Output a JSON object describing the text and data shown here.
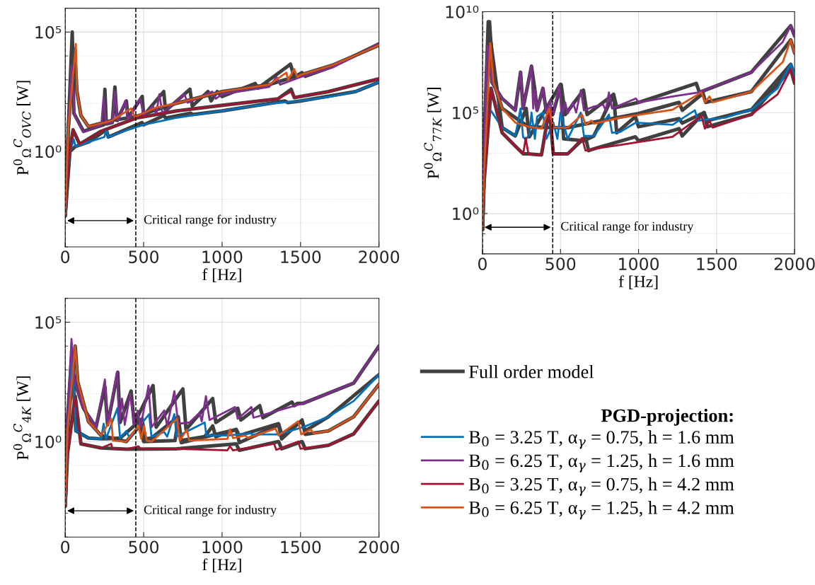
{
  "chart_data": [
    {
      "type": "line",
      "xlabel": "f [Hz]",
      "ylabel": "P$^{0}$$_{Ω}$$^{C}$$_{OVC}$ [W]",
      "log": "y",
      "grid": true,
      "line_style": "solid",
      "xlim": [
        0,
        2000
      ],
      "xticks": [
        0,
        500,
        1000,
        1500,
        2000
      ],
      "ylim": [
        0.0001,
        1000000
      ],
      "yticks": [
        {
          "value": 0.0001,
          "label": null
        },
        {
          "value": 0.001,
          "label": null
        },
        {
          "value": 0.01,
          "label": null
        },
        {
          "value": 0.1,
          "label": null
        },
        {
          "value": 1,
          "label": "10⁰"
        },
        {
          "value": 10,
          "label": null
        },
        {
          "value": 100,
          "label": null
        },
        {
          "value": 1000,
          "label": null
        },
        {
          "value": 10000,
          "label": null
        },
        {
          "value": 100000,
          "label": "10⁵"
        },
        {
          "value": 1000000,
          "label": null
        }
      ],
      "ref_lines": [
        {
          "axis": "x",
          "value": 0,
          "color": "#000000",
          "line_style": "dashed"
        },
        {
          "axis": "x",
          "value": 450,
          "color": "#000000",
          "line_style": "dashed"
        }
      ],
      "annotations": [
        "Critical range for industry"
      ],
      "series": [
        {
          "color": "#404040",
          "x": [
            0,
            20,
            45,
            55,
            116,
            245,
            253,
            262,
            300,
            317,
            330,
            390,
            400,
            491,
            500,
            628,
            640,
            795,
            810,
            910,
            930,
            969,
            1000,
            1211,
            1230,
            1436,
            1460,
            1509,
            1530,
            1700,
            2000
          ],
          "values": [
            0.002,
            10,
            100000.0,
            40,
            7,
            13,
            400,
            14,
            16,
            500,
            20,
            130,
            25,
            200,
            32,
            320,
            50,
            400,
            80,
            320,
            130,
            320,
            200,
            700,
            450,
            4500,
            1300,
            2000,
            1400,
            3500,
            32000
          ]
        },
        {
          "color": "#404040",
          "x": [
            0,
            20,
            60,
            75,
            100,
            148,
            300,
            444,
            700,
            1000,
            1300,
            1500,
            1700,
            2000
          ],
          "values": [
            0.002,
            10,
            20000,
            320,
            32,
            11,
            20,
            28,
            100,
            320,
            630,
            1600,
            4000,
            28000
          ]
        },
        {
          "color": "#404040",
          "x": [
            0,
            30,
            65,
            150,
            262,
            275,
            400,
            490,
            500,
            630,
            640,
            800,
            810,
            1000,
            1400,
            1420,
            1500,
            1850,
            2000
          ],
          "values": [
            0.002,
            1,
            1.6,
            2.5,
            8,
            4,
            9,
            16,
            13,
            32,
            25,
            40,
            35,
            50,
            130,
            110,
            130,
            320,
            800
          ]
        },
        {
          "color": "#404040",
          "x": [
            0,
            20,
            50,
            92,
            229,
            454,
            712,
            1034,
            1356,
            1440,
            1460,
            1678,
            2000
          ],
          "values": [
            0.002,
            0.4,
            8,
            2,
            7,
            25,
            50,
            90,
            160,
            400,
            180,
            320,
            1100
          ]
        },
        {
          "color": "#0072bd",
          "x": [
            0,
            10,
            30,
            55,
            65,
            150,
            250,
            262,
            275,
            400,
            500,
            700,
            1000,
            1300,
            1500,
            1700,
            1850,
            2000
          ],
          "values": [
            0.002,
            0.1,
            1,
            3.2,
            1.6,
            2.5,
            4,
            8,
            4,
            8,
            13,
            25,
            50,
            100,
            130,
            200,
            320,
            800
          ]
        },
        {
          "color": "#7e2f8e",
          "x": [
            0,
            20,
            40,
            60,
            116,
            230,
            245,
            260,
            300,
            317,
            335,
            382,
            400,
            478,
            500,
            559,
            580,
            600,
            620,
            693,
            760,
            780,
            937,
            960,
            1000,
            1300,
            1348,
            1370,
            1500,
            1700,
            2000
          ],
          "values": [
            0.002,
            10,
            4000,
            32,
            6.3,
            13,
            200,
            14,
            16,
            320,
            18,
            130,
            20,
            160,
            32,
            80,
            35,
            250,
            40,
            100,
            250,
            110,
            320,
            160,
            250,
            500,
            1300,
            630,
            1300,
            3200,
            32000
          ]
        },
        {
          "color": "#a2142f",
          "x": [
            0,
            20,
            50,
            92,
            229,
            454,
            712,
            1034,
            1356,
            1440,
            1460,
            1678,
            2000
          ],
          "values": [
            0.002,
            0.4,
            8,
            2,
            7,
            25,
            50,
            90,
            160,
            320,
            180,
            320,
            1100
          ]
        },
        {
          "color": "#d95319",
          "x": [
            0,
            20,
            68,
            75,
            100,
            148,
            250,
            300,
            420,
            444,
            583,
            700,
            1000,
            1300,
            1410,
            1420,
            1460,
            1480,
            1500,
            1700,
            2000
          ],
          "values": [
            0.002,
            10,
            32000,
            320,
            32,
            11,
            16,
            20,
            63,
            28,
            70,
            100,
            320,
            630,
            2000,
            1000,
            2800,
            1300,
            1600,
            4000,
            28000
          ]
        }
      ]
    },
    {
      "type": "line",
      "xlabel": "f [Hz]",
      "ylabel": "P$^{0}$$_{Ω}$$^{C}$$_{77K}$ [W]",
      "log": "y",
      "grid": true,
      "line_style": "solid",
      "xlim": [
        0,
        2000
      ],
      "xticks": [
        0,
        500,
        1000,
        1500,
        2000
      ],
      "ylim": [
        0.01,
        10000000000
      ],
      "yticks": [
        {
          "value": 0.01,
          "label": null
        },
        {
          "value": 0.1,
          "label": null
        },
        {
          "value": 1,
          "label": "10⁰"
        },
        {
          "value": 10,
          "label": null
        },
        {
          "value": 100,
          "label": null
        },
        {
          "value": 1000,
          "label": null
        },
        {
          "value": 10000,
          "label": null
        },
        {
          "value": 100000,
          "label": "10⁵"
        },
        {
          "value": 1000000,
          "label": null
        },
        {
          "value": 10000000,
          "label": null
        },
        {
          "value": 100000000,
          "label": null
        },
        {
          "value": 1000000000,
          "label": null
        },
        {
          "value": 10000000000,
          "label": "10¹⁰"
        }
      ],
      "ref_lines": [
        {
          "axis": "x",
          "value": 0,
          "color": "#000000",
          "line_style": "dashed"
        },
        {
          "axis": "x",
          "value": 450,
          "color": "#000000",
          "line_style": "dashed"
        }
      ],
      "annotations": [
        "Critical range for industry"
      ],
      "series": [
        {
          "color": "#404040",
          "x": [
            0,
            10,
            37,
            60,
            126,
            210,
            244,
            260,
            314,
            336,
            350,
            387,
            410,
            450,
            504,
            530,
            647,
            670,
            840,
            860,
            1000,
            1370,
            1390,
            1723,
            1975,
            2000
          ],
          "values": [
            0.16,
            3200,
            3200000000.0,
            3200000.0,
            500000.0,
            130000.0,
            10000000.0,
            160000.0,
            20000000.0,
            1300000.0,
            130000.0,
            1600000.0,
            100000.0,
            80000.0,
            2500000.0,
            80000.0,
            1300000.0,
            80000.0,
            800000.0,
            180000.0,
            320000.0,
            2800000.0,
            1000000.0,
            10000000.0,
            2000000000.0,
            630000000.0
          ]
        },
        {
          "color": "#404040",
          "x": [
            0,
            10,
            45,
            70,
            126,
            294,
            454,
            546,
            700,
            1000,
            1260,
            1280,
            1413,
            1430,
            1723,
            1975,
            2000
          ],
          "values": [
            0.16,
            100,
            3200000000.0,
            3200000.0,
            160000.0,
            20000.0,
            18000.0,
            18000.0,
            32000.0,
            90000.0,
            320000.0,
            130000.0,
            900000.0,
            320000.0,
            1100000.0,
            400000000.0,
            90000000.0
          ]
        },
        {
          "color": "#404040",
          "x": [
            0,
            10,
            45,
            126,
            210,
            280,
            300,
            500,
            520,
            650,
            714,
            840,
            860,
            980,
            1000,
            1260,
            1280,
            1420,
            1440,
            1723,
            1975,
            2000
          ],
          "values": [
            0.16,
            100,
            1000000000.0,
            18000.0,
            7000.0,
            160000.0,
            6300.0,
            2500000.0,
            5000.0,
            4000.0,
            7000.0,
            800000.0,
            10000.0,
            63000.0,
            20000.0,
            50000.0,
            30000.0,
            100000.0,
            40000.0,
            140000.0,
            25000000.0,
            7000000.0
          ]
        },
        {
          "color": "#404040",
          "x": [
            0,
            10,
            55,
            126,
            210,
            261,
            294,
            378,
            428,
            454,
            546,
            660,
            680,
            714,
            980,
            1000,
            1260,
            1280,
            1420,
            1440,
            1723,
            1975,
            2000
          ],
          "values": [
            0.16,
            32,
            1600000.0,
            10000.0,
            2200.0,
            900,
            900,
            800,
            160000.0,
            900,
            900,
            6300.0,
            1300.0,
            1600.0,
            6300.0,
            4000.0,
            16000.0,
            7000.0,
            100000.0,
            20000.0,
            80000.0,
            14000000.0,
            2800000.0
          ]
        },
        {
          "color": "#0072bd",
          "x": [
            0,
            10,
            45,
            126,
            210,
            244,
            260,
            277,
            300,
            314,
            336,
            350,
            387,
            410,
            454,
            480,
            500,
            546,
            630,
            650,
            714,
            810,
            830,
            882,
            983,
            1218,
            1361,
            1380,
            1555,
            1723,
            1891,
            1975,
            2000
          ],
          "values": [
            0.16,
            100,
            160000.0,
            18000.0,
            7000.0,
            160000.0,
            6300.0,
            4500.0,
            8000.0,
            100000.0,
            5000.0,
            63000.0,
            100000.0,
            5000.0,
            32000.0,
            5000.0,
            100000.0,
            5000.0,
            100000.0,
            7000.0,
            7000.0,
            80000.0,
            10000.0,
            11000.0,
            32000.0,
            25000.0,
            130000.0,
            40000.0,
            56000.0,
            140000.0,
            1600000.0,
            25000000.0,
            7000000.0
          ]
        },
        {
          "color": "#7e2f8e",
          "x": [
            0,
            10,
            32,
            60,
            126,
            210,
            244,
            260,
            314,
            325,
            336,
            350,
            387,
            410,
            432,
            450,
            491,
            510,
            530,
            546,
            580,
            600,
            630,
            650,
            714,
            773,
            790,
            810,
            830,
            983,
            1000,
            1218,
            1387,
            1723,
            1924,
            1975,
            2000
          ],
          "values": [
            0.16,
            3200,
            200000000.0,
            3200000.0,
            500000.0,
            130000.0,
            10000000.0,
            160000.0,
            20000000.0,
            160000.0,
            1300000.0,
            130000.0,
            1600000.0,
            100000.0,
            400000.0,
            80000.0,
            2000000.0,
            80000.0,
            320000.0,
            90000.0,
            320000.0,
            100000.0,
            1300000.0,
            130000.0,
            200000.0,
            250000.0,
            130000.0,
            1000000.0,
            160000.0,
            500000.0,
            320000.0,
            630000.0,
            1000000.0,
            10000000.0,
            320000000.0,
            2000000000.0,
            630000000.0
          ]
        },
        {
          "color": "#a2142f",
          "x": [
            0,
            10,
            55,
            126,
            210,
            261,
            277,
            294,
            378,
            428,
            454,
            546,
            638,
            660,
            714,
            882,
            1218,
            1403,
            1425,
            1454,
            1475,
            1723,
            1891,
            1975,
            2000
          ],
          "values": [
            0.16,
            32,
            1600000.0,
            10000.0,
            2200.0,
            900,
            5600.0,
            900,
            800,
            160000.0,
            900,
            900,
            5600.0,
            1300.0,
            1600.0,
            2500.0,
            6300.0,
            70000.0,
            16000.0,
            40000.0,
            18000.0,
            80000.0,
            800000.0,
            14000000.0,
            2800000.0
          ]
        },
        {
          "color": "#d95319",
          "x": [
            0,
            10,
            50,
            70,
            126,
            210,
            294,
            378,
            428,
            454,
            546,
            638,
            660,
            697,
            715,
            882,
            1218,
            1403,
            1425,
            1454,
            1475,
            1723,
            1924,
            1975,
            2000
          ],
          "values": [
            0.16,
            100,
            280000000.0,
            3200000.0,
            160000.0,
            32000.0,
            20000.0,
            16000.0,
            160000.0,
            18000.0,
            18000.0,
            80000.0,
            25000.0,
            40000.0,
            28000.0,
            56000.0,
            140000.0,
            1000000.0,
            320000.0,
            630000.0,
            320000.0,
            1100000.0,
            32000000.0,
            400000000.0,
            90000000.0
          ]
        }
      ]
    },
    {
      "type": "line",
      "xlabel": "f [Hz]",
      "ylabel": "P$^{0}$$_{Ω}$$^{C}$$_{4K}$ [W]",
      "log": "y",
      "grid": true,
      "line_style": "solid",
      "legend": "right",
      "legend_title": "PGD-projection:",
      "xlim": [
        0,
        2000
      ],
      "xticks": [
        0,
        500,
        1000,
        1500,
        2000
      ],
      "ylim": [
        0.0001,
        1000000
      ],
      "yticks": [
        {
          "value": 0.0001,
          "label": null
        },
        {
          "value": 0.001,
          "label": null
        },
        {
          "value": 0.01,
          "label": null
        },
        {
          "value": 0.1,
          "label": null
        },
        {
          "value": 1,
          "label": "10⁰"
        },
        {
          "value": 10,
          "label": null
        },
        {
          "value": 100,
          "label": null
        },
        {
          "value": 1000,
          "label": null
        },
        {
          "value": 10000,
          "label": null
        },
        {
          "value": 100000,
          "label": "10⁵"
        },
        {
          "value": 1000000,
          "label": null
        }
      ],
      "ref_lines": [
        {
          "axis": "x",
          "value": 0,
          "color": "#000000",
          "line_style": "dashed"
        },
        {
          "axis": "x",
          "value": 450,
          "color": "#000000",
          "line_style": "dashed"
        }
      ],
      "annotations": [
        "Critical range for industry"
      ],
      "series": [
        {
          "name": "Full order model",
          "color": "#404040",
          "x": [
            0,
            15,
            40,
            60,
            116,
            196,
            253,
            270,
            335,
            350,
            420,
            440,
            560,
            580,
            750,
            770,
            940,
            960,
            1100,
            1120,
            1240,
            1260,
            1445,
            1460,
            1480,
            1517,
            1839,
            2000
          ],
          "values": [
            0.002,
            10,
            3200,
            320,
            25,
            4,
            200,
            5,
            800,
            6.3,
            130,
            5.6,
            220,
            4,
            160,
            3.2,
            63,
            6.3,
            25,
            8,
            32,
            10,
            45,
            32,
            40,
            40,
            280,
            10000.0
          ]
        },
        {
          "color": "#404040",
          "x": [
            0,
            15,
            43,
            68,
            148,
            229,
            260,
            350,
            490,
            510,
            550,
            720,
            740,
            889,
            940,
            960,
            1090,
            1110,
            1360,
            1380,
            1510,
            1530,
            1678,
            2000
          ],
          "values": [
            0.002,
            3.2,
            4000,
            2.8,
            1.4,
            1.3,
            1.3,
            1.4,
            9,
            1.3,
            1.4,
            11,
            1.1,
            1.6,
            4.5,
            1.6,
            3.2,
            1.8,
            5.6,
            2,
            7,
            2.8,
            11,
            630
          ]
        },
        {
          "color": "#404040",
          "x": [
            0,
            15,
            64,
            80,
            148,
            229,
            390,
            480,
            500,
            700,
            720,
            740,
            1090,
            1110,
            1360,
            1380,
            1510,
            1530,
            1678,
            1839,
            2000
          ],
          "values": [
            0.002,
            3.2,
            10000.0,
            320,
            7,
            1.8,
            1,
            5,
            1,
            1.1,
            8,
            0.9,
            3.2,
            0.9,
            5,
            1.3,
            8,
            2,
            2.8,
            11,
            250
          ]
        },
        {
          "color": "#404040",
          "x": [
            0,
            15,
            64,
            100,
            229,
            390,
            712,
            1090,
            1110,
            1360,
            1380,
            1510,
            1530,
            1678,
            1839,
            2000
          ],
          "values": [
            0.002,
            0.32,
            80,
            0.8,
            0.54,
            0.48,
            0.5,
            0.8,
            0.43,
            1,
            0.5,
            1,
            0.5,
            0.7,
            2.1,
            50
          ]
        },
        {
          "name": "B$_{0}$ = 3.25 T, α$_{γ}$ = 0.75, h = 1.6 mm",
          "color": "#0072bd",
          "x": [
            0,
            15,
            43,
            68,
            148,
            229,
            245,
            260,
            333,
            350,
            390,
            410,
            535,
            550,
            631,
            650,
            696,
            710,
            889,
            900,
            1034,
            1179,
            1195,
            1356,
            1517,
            1678,
            1839,
            2000
          ],
          "values": [
            0.002,
            3.2,
            4000,
            2.8,
            1.4,
            1.3,
            5.6,
            1.3,
            25,
            1.4,
            2.8,
            1.4,
            14,
            1.6,
            2.5,
            1.6,
            14,
            1.6,
            6.3,
            1.8,
            1.8,
            2.2,
            2,
            2,
            4,
            11,
            50,
            630
          ]
        },
        {
          "name": "B$_{0}$ = 6.25 T, α$_{γ}$ = 1.25, h = 1.6 mm",
          "color": "#7e2f8e",
          "x": [
            0,
            15,
            40,
            60,
            116,
            196,
            253,
            270,
            330,
            345,
            362,
            380,
            414,
            440,
            462,
            480,
            531,
            550,
            631,
            650,
            696,
            720,
            792,
            857,
            870,
            897,
            920,
            1082,
            1100,
            1187,
            1200,
            1517,
            1839,
            2000
          ],
          "values": [
            0.002,
            10,
            20000,
            320,
            25,
            4,
            400,
            5,
            800,
            6.3,
            63,
            5,
            100,
            5,
            20,
            4,
            220,
            4,
            20,
            4.5,
            130,
            5.6,
            6.3,
            16,
            7,
            80,
            8,
            28,
            9,
            28,
            10,
            40,
            280,
            10000
          ]
        },
        {
          "name": "B$_{0}$ = 3.25 T, α$_{γ}$ = 0.75, h = 4.2 mm",
          "color": "#a2142f",
          "x": [
            0,
            15,
            64,
            100,
            229,
            293,
            300,
            390,
            467,
            480,
            712,
            1034,
            1050,
            1070,
            1332,
            1345,
            1485,
            1500,
            1678,
            1839,
            2000
          ],
          "values": [
            0.002,
            0.32,
            80,
            0.8,
            0.54,
            0.8,
            0.5,
            0.48,
            0.63,
            0.5,
            0.5,
            0.43,
            0.63,
            0.43,
            0.8,
            0.45,
            1,
            0.5,
            0.7,
            2.1,
            50
          ]
        },
        {
          "name": "B$_{0}$ = 6.25 T, α$_{γ}$ = 1.25, h = 4.2 mm",
          "color": "#d95319",
          "x": [
            0,
            15,
            64,
            80,
            148,
            229,
            293,
            305,
            390,
            467,
            485,
            502,
            520,
            551,
            712,
            730,
            776,
            790,
            1034,
            1050,
            1070,
            1147,
            1165,
            1340,
            1360,
            1485,
            1505,
            1565,
            1585,
            1678,
            1839,
            2000
          ],
          "values": [
            0.002,
            3.2,
            10000,
            320,
            7,
            1.8,
            9,
            1.1,
            1,
            4.5,
            1.3,
            4.5,
            1.1,
            1,
            9,
            1.1,
            3.2,
            1.1,
            1.3,
            3.2,
            1.4,
            1.8,
            1.4,
            3.5,
            1.8,
            7,
            2,
            3.2,
            2.2,
            2.8,
            11,
            250
          ]
        }
      ]
    }
  ]
}
